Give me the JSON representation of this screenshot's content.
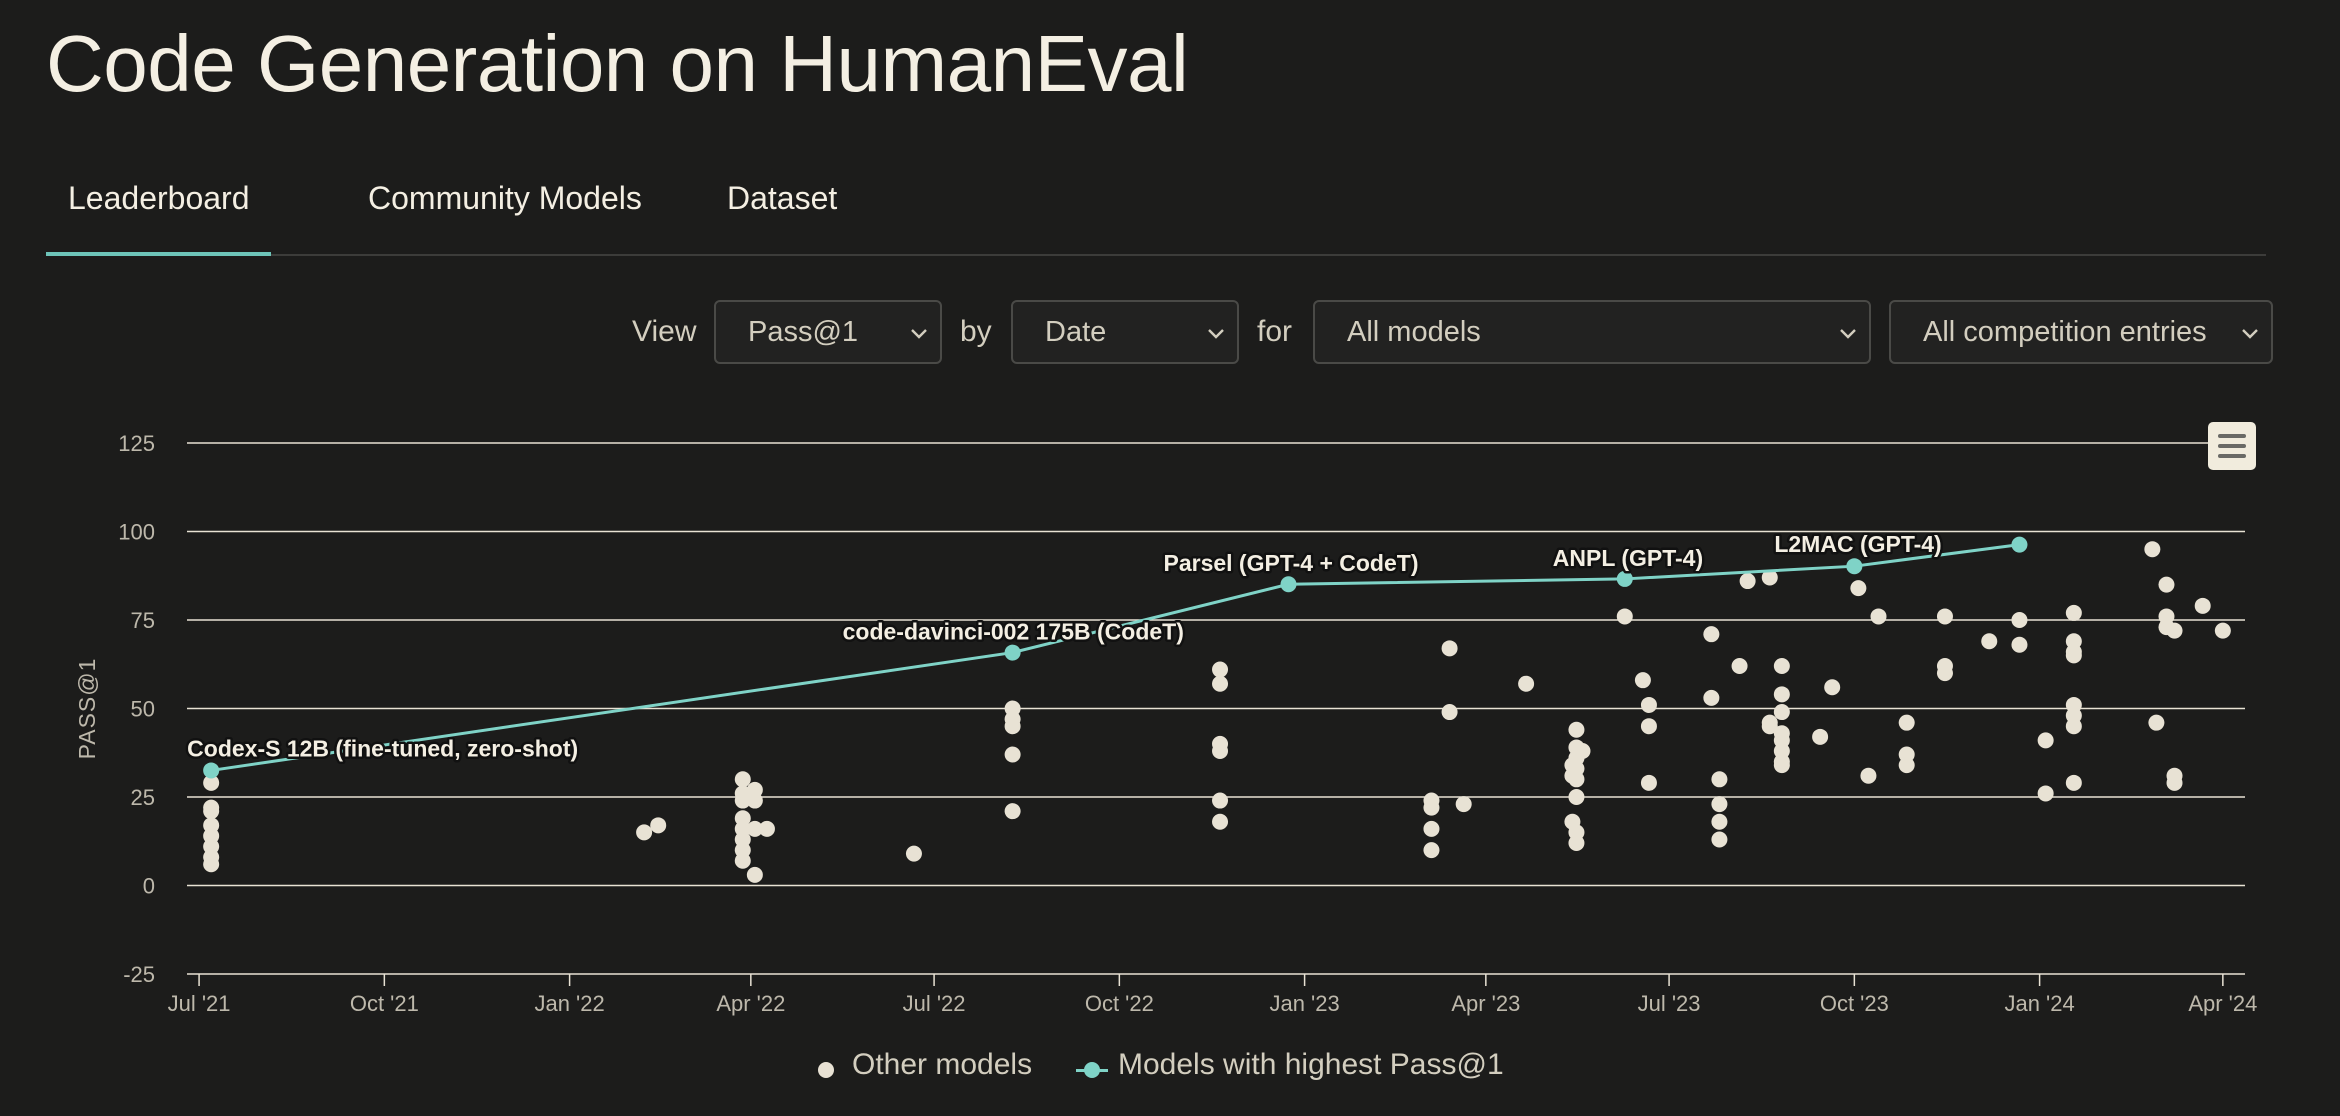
{
  "page": {
    "title": "Code Generation on HumanEval"
  },
  "tabs": [
    {
      "label": "Leaderboard",
      "active": true
    },
    {
      "label": "Community Models",
      "active": false
    },
    {
      "label": "Dataset",
      "active": false
    }
  ],
  "controls": {
    "view_label": "View",
    "metric": "Pass@1",
    "by_label": "by",
    "axis": "Date",
    "for_label": "for",
    "models": "All models",
    "entries": "All competition entries"
  },
  "legend": {
    "other": "Other models",
    "best": "Models with highest Pass@1"
  },
  "colors": {
    "background": "#1c1c1b",
    "text": "#f4efe3",
    "accent": "#6ec4b9",
    "best_series": "#7fd3c7",
    "other_series": "#e8e2d4",
    "grid": "#e8e2d4"
  },
  "icons": {
    "menu": "hamburger-menu-icon",
    "select_chevron": "chevron-down-icon"
  },
  "chart_data": {
    "type": "scatter",
    "ylabel": "PASS@1",
    "xlabel": "",
    "ylim": [
      -25,
      125
    ],
    "yticks": [
      -25,
      0,
      25,
      50,
      75,
      100,
      125
    ],
    "xlim": [
      "2021-06-25",
      "2024-04-12"
    ],
    "xticks": [
      {
        "label": "Jul '21",
        "date": "2021-07-01"
      },
      {
        "label": "Oct '21",
        "date": "2021-10-01"
      },
      {
        "label": "Jan '22",
        "date": "2022-01-01"
      },
      {
        "label": "Apr '22",
        "date": "2022-04-01"
      },
      {
        "label": "Jul '22",
        "date": "2022-07-01"
      },
      {
        "label": "Oct '22",
        "date": "2022-10-01"
      },
      {
        "label": "Jan '23",
        "date": "2023-01-01"
      },
      {
        "label": "Apr '23",
        "date": "2023-04-01"
      },
      {
        "label": "Jul '23",
        "date": "2023-07-01"
      },
      {
        "label": "Oct '23",
        "date": "2023-10-01"
      },
      {
        "label": "Jan '24",
        "date": "2024-01-01"
      },
      {
        "label": "Apr '24",
        "date": "2024-04-01"
      }
    ],
    "grid": true,
    "legend_position": "bottom-center",
    "series": [
      {
        "name": "Other models",
        "type": "scatter",
        "points": [
          [
            "2021-07-07",
            22
          ],
          [
            "2021-07-07",
            21
          ],
          [
            "2021-07-07",
            17
          ],
          [
            "2021-07-07",
            14
          ],
          [
            "2021-07-07",
            11
          ],
          [
            "2021-07-07",
            8
          ],
          [
            "2021-07-07",
            6
          ],
          [
            "2021-07-07",
            29
          ],
          [
            "2022-02-07",
            15
          ],
          [
            "2022-02-14",
            17
          ],
          [
            "2022-03-28",
            30
          ],
          [
            "2022-03-28",
            26
          ],
          [
            "2022-03-28",
            24
          ],
          [
            "2022-03-28",
            19
          ],
          [
            "2022-03-28",
            16
          ],
          [
            "2022-03-28",
            13
          ],
          [
            "2022-03-28",
            10
          ],
          [
            "2022-03-28",
            7
          ],
          [
            "2022-04-03",
            27
          ],
          [
            "2022-04-03",
            24
          ],
          [
            "2022-04-03",
            16
          ],
          [
            "2022-04-03",
            3
          ],
          [
            "2022-04-09",
            16
          ],
          [
            "2022-06-21",
            9
          ],
          [
            "2022-08-09",
            50
          ],
          [
            "2022-08-09",
            47
          ],
          [
            "2022-08-09",
            45
          ],
          [
            "2022-08-09",
            37
          ],
          [
            "2022-08-09",
            21
          ],
          [
            "2022-11-20",
            61
          ],
          [
            "2022-11-20",
            57
          ],
          [
            "2022-11-20",
            40
          ],
          [
            "2022-11-20",
            38
          ],
          [
            "2022-11-20",
            24
          ],
          [
            "2022-11-20",
            18
          ],
          [
            "2023-03-05",
            24
          ],
          [
            "2023-03-05",
            22
          ],
          [
            "2023-03-05",
            16
          ],
          [
            "2023-03-05",
            10
          ],
          [
            "2023-03-14",
            67
          ],
          [
            "2023-03-14",
            49
          ],
          [
            "2023-03-21",
            23
          ],
          [
            "2023-04-21",
            57
          ],
          [
            "2023-05-14",
            18
          ],
          [
            "2023-05-14",
            31
          ],
          [
            "2023-05-14",
            34
          ],
          [
            "2023-05-16",
            44
          ],
          [
            "2023-05-16",
            39
          ],
          [
            "2023-05-16",
            36
          ],
          [
            "2023-05-16",
            33
          ],
          [
            "2023-05-16",
            30
          ],
          [
            "2023-05-16",
            25
          ],
          [
            "2023-05-16",
            15
          ],
          [
            "2023-05-16",
            12
          ],
          [
            "2023-05-19",
            38
          ],
          [
            "2023-06-09",
            76
          ],
          [
            "2023-06-18",
            58
          ],
          [
            "2023-06-21",
            51
          ],
          [
            "2023-06-21",
            45
          ],
          [
            "2023-06-21",
            29
          ],
          [
            "2023-07-22",
            71
          ],
          [
            "2023-07-22",
            53
          ],
          [
            "2023-07-26",
            30
          ],
          [
            "2023-07-26",
            23
          ],
          [
            "2023-07-26",
            18
          ],
          [
            "2023-07-26",
            13
          ],
          [
            "2023-08-05",
            62
          ],
          [
            "2023-08-09",
            86
          ],
          [
            "2023-08-20",
            87
          ],
          [
            "2023-08-20",
            46
          ],
          [
            "2023-08-20",
            45
          ],
          [
            "2023-08-26",
            62
          ],
          [
            "2023-08-26",
            54
          ],
          [
            "2023-08-26",
            49
          ],
          [
            "2023-08-26",
            43
          ],
          [
            "2023-08-26",
            41
          ],
          [
            "2023-08-26",
            38
          ],
          [
            "2023-08-26",
            35
          ],
          [
            "2023-08-26",
            34
          ],
          [
            "2023-09-14",
            42
          ],
          [
            "2023-09-20",
            56
          ],
          [
            "2023-10-03",
            84
          ],
          [
            "2023-10-08",
            31
          ],
          [
            "2023-10-13",
            76
          ],
          [
            "2023-10-27",
            46
          ],
          [
            "2023-10-27",
            37
          ],
          [
            "2023-10-27",
            34
          ],
          [
            "2023-11-15",
            76
          ],
          [
            "2023-11-15",
            62
          ],
          [
            "2023-11-15",
            60
          ],
          [
            "2023-12-07",
            69
          ],
          [
            "2023-12-22",
            75
          ],
          [
            "2023-12-22",
            68
          ],
          [
            "2024-01-04",
            41
          ],
          [
            "2024-01-04",
            26
          ],
          [
            "2024-01-18",
            77
          ],
          [
            "2024-01-18",
            69
          ],
          [
            "2024-01-18",
            66
          ],
          [
            "2024-01-18",
            65
          ],
          [
            "2024-01-18",
            51
          ],
          [
            "2024-01-18",
            48
          ],
          [
            "2024-01-18",
            45
          ],
          [
            "2024-01-18",
            29
          ],
          [
            "2024-02-26",
            95
          ],
          [
            "2024-02-28",
            46
          ],
          [
            "2024-03-04",
            85
          ],
          [
            "2024-03-04",
            76
          ],
          [
            "2024-03-04",
            73
          ],
          [
            "2024-03-08",
            72
          ],
          [
            "2024-03-08",
            31
          ],
          [
            "2024-03-08",
            29
          ],
          [
            "2024-03-22",
            79
          ],
          [
            "2024-04-01",
            72
          ]
        ]
      },
      {
        "name": "Models with highest Pass@1",
        "type": "line",
        "points": [
          {
            "date": "2021-07-07",
            "y": 32.5,
            "label": "Codex-S 12B (fine-tuned, zero-shot)"
          },
          {
            "date": "2022-08-09",
            "y": 65.8,
            "label": "code-davinci-002 175B (CodeT)"
          },
          {
            "date": "2022-12-24",
            "y": 85.1,
            "label": "Parsel (GPT-4 + CodeT)"
          },
          {
            "date": "2023-06-09",
            "y": 86.6,
            "label": "ANPL (GPT-4)"
          },
          {
            "date": "2023-10-01",
            "y": 90.2,
            "label": "L2MAC (GPT-4)"
          },
          {
            "date": "2023-12-22",
            "y": 96.3,
            "label": ""
          }
        ]
      }
    ]
  }
}
